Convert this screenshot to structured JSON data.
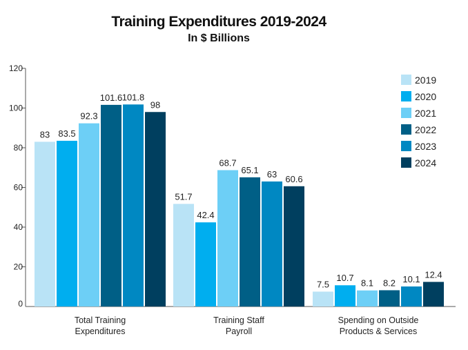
{
  "chart_data": {
    "type": "bar",
    "title": "Training Expenditures 2019-2024",
    "subtitle": "In $ Billions",
    "xlabel": "",
    "ylabel": "",
    "ylim": [
      0,
      120
    ],
    "yticks": [
      0,
      20,
      40,
      60,
      80,
      100,
      120
    ],
    "grid": false,
    "legend_position": "top-right",
    "categories": [
      [
        "Total Training",
        "Expenditures"
      ],
      [
        "Training Staff",
        "Payroll"
      ],
      [
        "Spending on Outside",
        "Products & Services"
      ]
    ],
    "series": [
      {
        "name": "2019",
        "color": "#b9e3f6",
        "values": [
          83,
          51.7,
          7.5
        ]
      },
      {
        "name": "2020",
        "color": "#00aeef",
        "values": [
          83.5,
          42.4,
          10.7
        ]
      },
      {
        "name": "2021",
        "color": "#6dcff6",
        "values": [
          92.3,
          68.7,
          8.1
        ]
      },
      {
        "name": "2022",
        "color": "#005f86",
        "values": [
          101.6,
          65.1,
          8.2
        ]
      },
      {
        "name": "2023",
        "color": "#0088c2",
        "values": [
          101.8,
          63,
          10.1
        ]
      },
      {
        "name": "2024",
        "color": "#003f5f",
        "values": [
          98,
          60.6,
          12.4
        ]
      }
    ]
  }
}
